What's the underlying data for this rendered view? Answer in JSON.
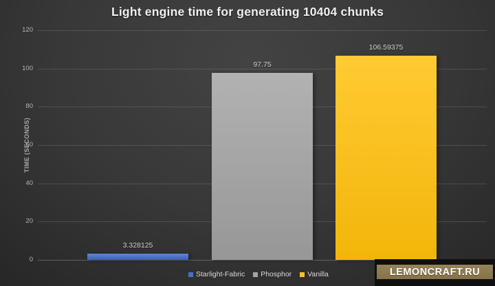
{
  "chart_data": {
    "type": "bar",
    "title": "Light engine time for generating 10404 chunks",
    "categories": [
      "Starlight-Fabric",
      "Phosphor",
      "Vanilla"
    ],
    "values": [
      3.328125,
      97.75,
      106.59375
    ],
    "value_labels": [
      "3.328125",
      "97.75",
      "106.59375"
    ],
    "series_colors": [
      "#4472c4",
      "#a5a5a5",
      "#fdc224"
    ],
    "bar_gradients": [
      [
        "#5e89d9",
        "#3a61ad"
      ],
      [
        "#b2b2b2",
        "#979797"
      ],
      [
        "#ffca33",
        "#f2b60a"
      ]
    ],
    "xlabel": "",
    "ylabel": "TIME (SECONDS)",
    "ylim": [
      0,
      120
    ],
    "yticks": [
      0,
      20,
      40,
      60,
      80,
      100,
      120
    ],
    "grid": true,
    "legend_position": "bottom"
  },
  "watermark": {
    "label": "LEMONCRAFT.RU",
    "panel_color": "#8d7b54",
    "box_color": "#0f0f0f"
  },
  "theme": {
    "background": "#333333",
    "title_color": "#f0f0f0",
    "tick_color": "#b4b4b4",
    "gridline_color": "#4a4a4a"
  }
}
